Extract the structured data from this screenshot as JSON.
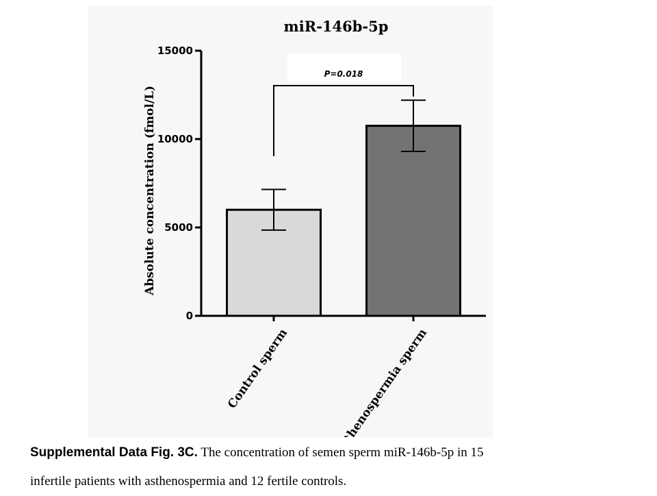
{
  "chart_data": {
    "type": "bar",
    "title": "miR-146b-5p",
    "ylabel": "Absolute  concentration (fmol/L)",
    "xlabel": "",
    "categories": [
      "Control sperm",
      "Asthenospermia sperm"
    ],
    "values": [
      6000,
      10750
    ],
    "error": [
      1150,
      1450
    ],
    "bar_colors": [
      "#d9d9d9",
      "#737373"
    ],
    "ylim": [
      0,
      15000
    ],
    "yticks": [
      0,
      5000,
      10000,
      15000
    ],
    "ytick_labels": [
      "0",
      "5000",
      "10000",
      "15000"
    ],
    "annotation": "P=0.018",
    "grid": false,
    "legend": "none"
  },
  "caption": {
    "label": "Supplemental Data Fig. 3C.",
    "line1": " The concentration of semen sperm miR-146b-5p in 15",
    "line2": "infertile patients with asthenospermia and 12 fertile controls."
  }
}
